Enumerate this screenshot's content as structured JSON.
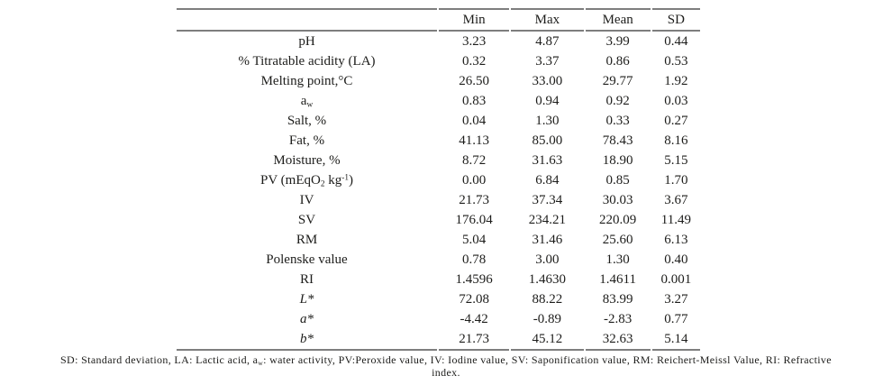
{
  "colors": {
    "rule": "#7e7e7e",
    "text": "#1d1d1b",
    "background": "#ffffff"
  },
  "table": {
    "columns": [
      "Min",
      "Max",
      "Mean",
      "SD"
    ],
    "rows": [
      {
        "label": "pH",
        "min": "3.23",
        "max": "4.87",
        "mean": "3.99",
        "sd": "0.44"
      },
      {
        "label": "% Titratable acidity (LA)",
        "min": "0.32",
        "max": "3.37",
        "mean": "0.86",
        "sd": "0.53"
      },
      {
        "label": "Melting point,°C",
        "min": "26.50",
        "max": "33.00",
        "mean": "29.77",
        "sd": "1.92"
      },
      {
        "label_base": "a",
        "label_sub": "w",
        "min": "0.83",
        "max": "0.94",
        "mean": "0.92",
        "sd": "0.03"
      },
      {
        "label": "Salt, %",
        "min": "0.04",
        "max": "1.30",
        "mean": "0.33",
        "sd": "0.27"
      },
      {
        "label": "Fat, %",
        "min": "41.13",
        "max": "85.00",
        "mean": "78.43",
        "sd": "8.16"
      },
      {
        "label": "Moisture, %",
        "min": "8.72",
        "max": "31.63",
        "mean": "18.90",
        "sd": "5.15"
      },
      {
        "label_p1": "PV (mEqO",
        "label_sub": "2",
        "label_p2": " kg",
        "label_sup": "-1",
        "label_p3": ")",
        "min": "0.00",
        "max": "6.84",
        "mean": "0.85",
        "sd": "1.70"
      },
      {
        "label": "IV",
        "min": "21.73",
        "max": "37.34",
        "mean": "30.03",
        "sd": "3.67"
      },
      {
        "label": "SV",
        "min": "176.04",
        "max": "234.21",
        "mean": "220.09",
        "sd": "11.49"
      },
      {
        "label": "RM",
        "min": "5.04",
        "max": "31.46",
        "mean": "25.60",
        "sd": "6.13"
      },
      {
        "label": "Polenske value",
        "min": "0.78",
        "max": "3.00",
        "mean": "1.30",
        "sd": "0.40"
      },
      {
        "label": "RI",
        "min": "1.4596",
        "max": "1.4630",
        "mean": "1.4611",
        "sd": "0.001"
      },
      {
        "label": "L*",
        "min": "72.08",
        "max": "88.22",
        "mean": "83.99",
        "sd": "3.27"
      },
      {
        "label": "a*",
        "min": "-4.42",
        "max": "-0.89",
        "mean": "-2.83",
        "sd": "0.77"
      },
      {
        "label": "b*",
        "min": "21.73",
        "max": "45.12",
        "mean": "32.63",
        "sd": "5.14"
      }
    ]
  },
  "footnote": {
    "line1_pre": "SD: Standard deviation, LA: Lactic acid, a",
    "line1_sub": "w",
    "line1_post": ": water activity, PV:Peroxide value, IV: Iodine value, SV: Saponification value, RM: Reichert-Meissl Value, RI: Refractive",
    "line2": "index."
  }
}
